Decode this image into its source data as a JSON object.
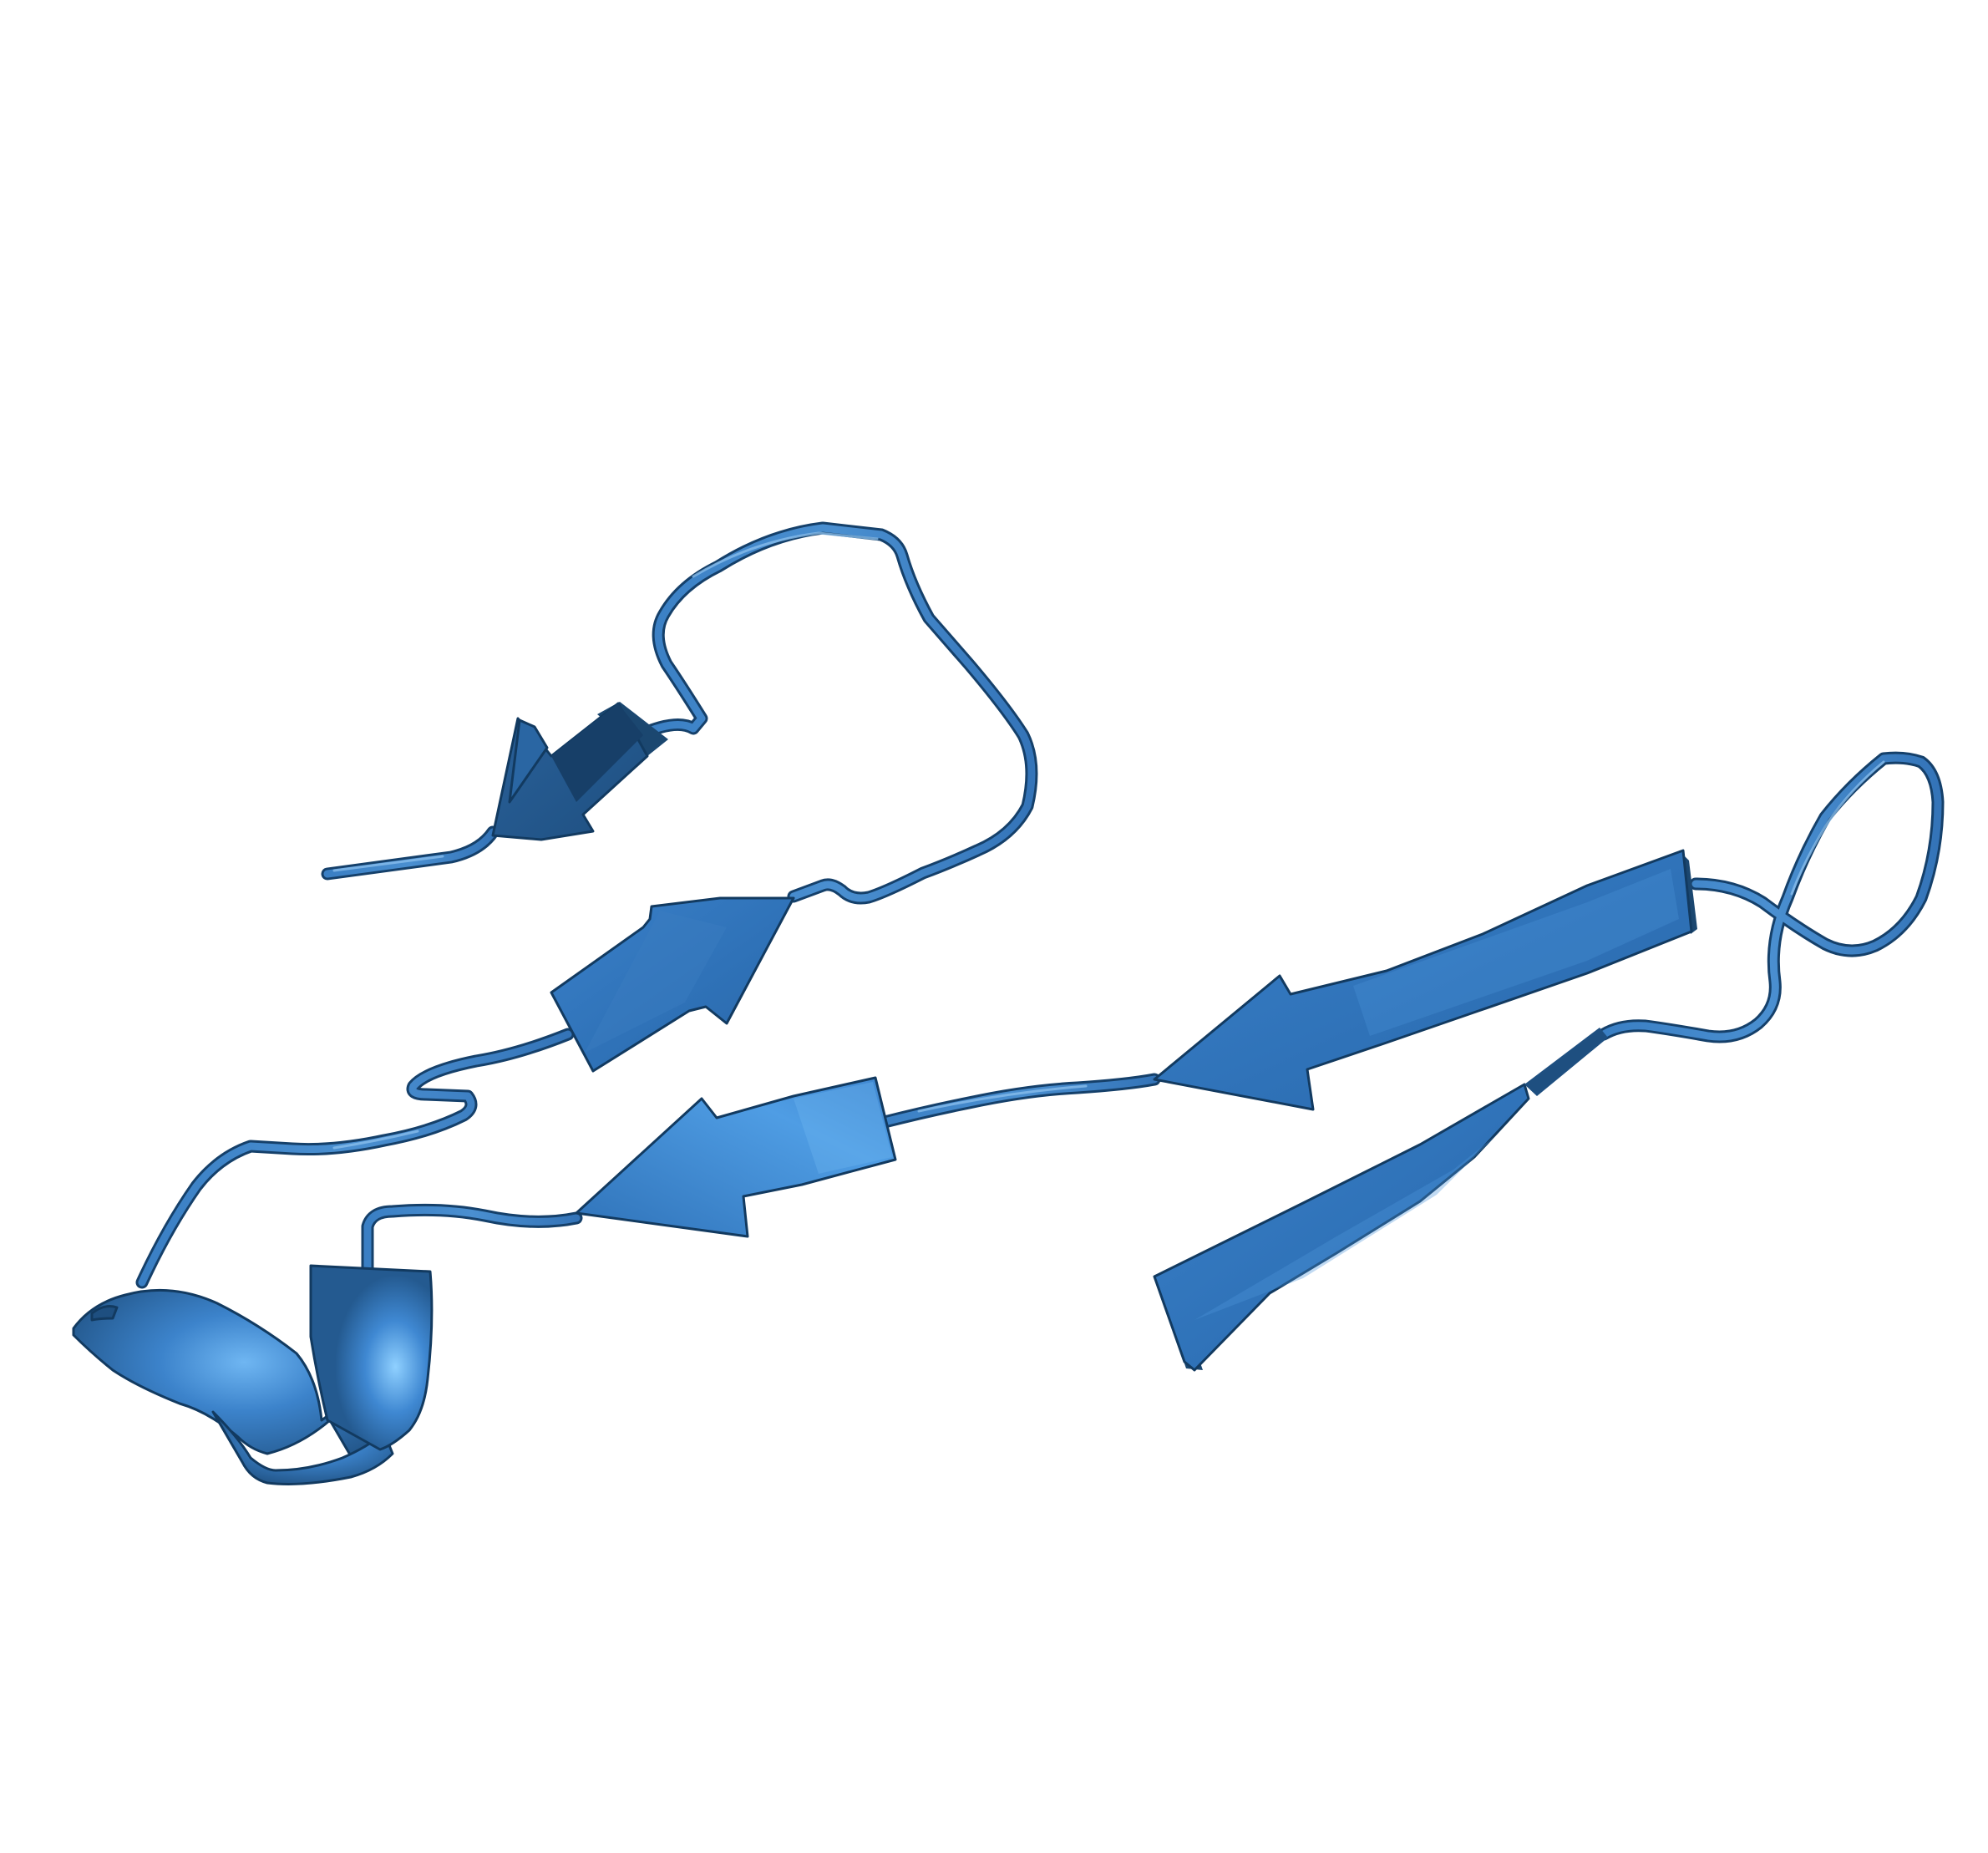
{
  "scene": {
    "background": "#ffffff",
    "colors": {
      "ribbon_base": "#2f72b8",
      "ribbon_light": "#4f9de4",
      "ribbon_dark": "#1e4f80",
      "ribbon_outline": "#123a60"
    },
    "elements": [
      "n-terminal-coil",
      "beta-strand-1",
      "top-loop",
      "beta-strand-2",
      "beta-strand-3",
      "alpha-helix",
      "beta-strand-4",
      "beta-strand-5",
      "right-loop",
      "c-terminal-coil"
    ]
  }
}
